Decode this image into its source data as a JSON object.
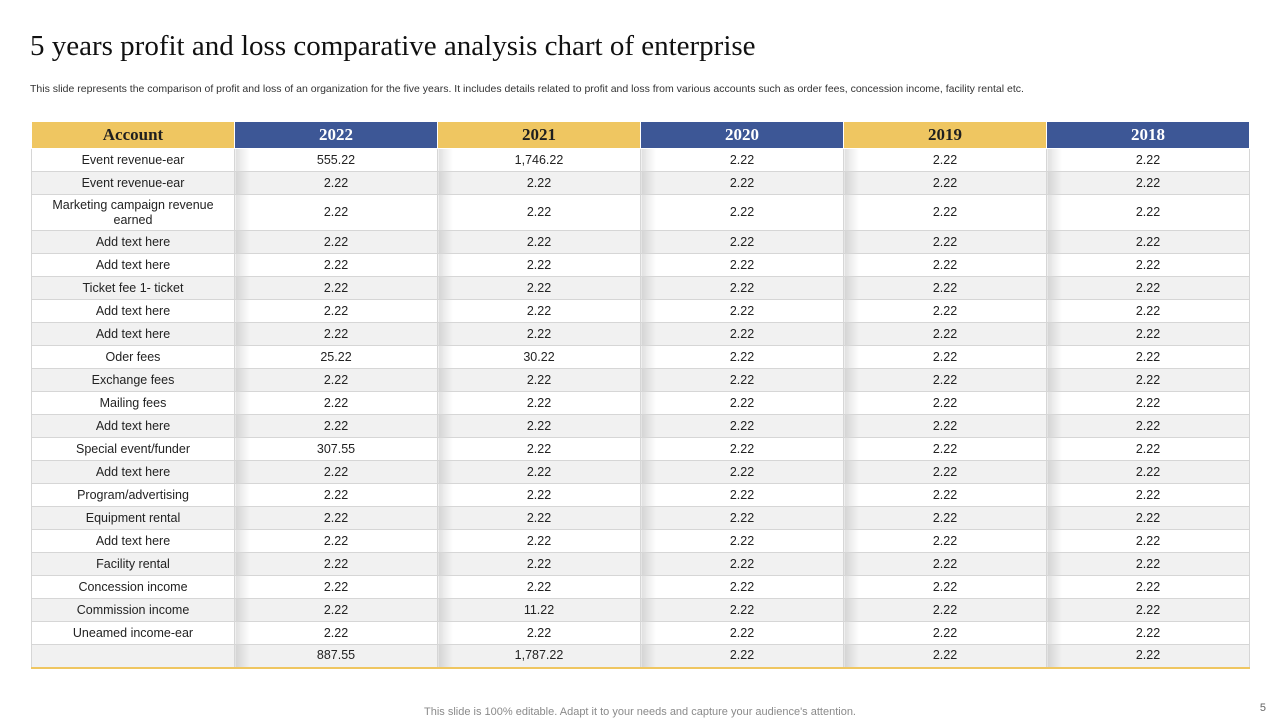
{
  "slide": {
    "title": "5 years profit and loss comparative analysis chart of enterprise",
    "subtitle": "This slide represents the comparison of profit and loss of an organization for the five years. It includes details related to profit and loss from various accounts such as order fees, concession income, facility rental etc.",
    "footer": "This slide is 100% editable. Adapt it to your needs and capture your audience's attention.",
    "page_number": "5"
  },
  "colors": {
    "gold": "#efc661",
    "navy": "#3d5796",
    "row_alt": "#f1f1f1"
  },
  "table": {
    "headers": [
      "Account",
      "2022",
      "2021",
      "2020",
      "2019",
      "2018"
    ],
    "rows": [
      [
        "Event revenue-ear",
        "555.22",
        "1,746.22",
        "2.22",
        "2.22",
        "2.22"
      ],
      [
        "Event revenue-ear",
        "2.22",
        "2.22",
        "2.22",
        "2.22",
        "2.22"
      ],
      [
        "Marketing campaign revenue earned",
        "2.22",
        "2.22",
        "2.22",
        "2.22",
        "2.22"
      ],
      [
        "Add text here",
        "2.22",
        "2.22",
        "2.22",
        "2.22",
        "2.22"
      ],
      [
        "Add text here",
        "2.22",
        "2.22",
        "2.22",
        "2.22",
        "2.22"
      ],
      [
        "Ticket fee 1- ticket",
        "2.22",
        "2.22",
        "2.22",
        "2.22",
        "2.22"
      ],
      [
        "Add text here",
        "2.22",
        "2.22",
        "2.22",
        "2.22",
        "2.22"
      ],
      [
        "Add text here",
        "2.22",
        "2.22",
        "2.22",
        "2.22",
        "2.22"
      ],
      [
        "Oder fees",
        "25.22",
        "30.22",
        "2.22",
        "2.22",
        "2.22"
      ],
      [
        "Exchange fees",
        "2.22",
        "2.22",
        "2.22",
        "2.22",
        "2.22"
      ],
      [
        "Mailing fees",
        "2.22",
        "2.22",
        "2.22",
        "2.22",
        "2.22"
      ],
      [
        "Add text here",
        "2.22",
        "2.22",
        "2.22",
        "2.22",
        "2.22"
      ],
      [
        "Special event/funder",
        "307.55",
        "2.22",
        "2.22",
        "2.22",
        "2.22"
      ],
      [
        "Add text here",
        "2.22",
        "2.22",
        "2.22",
        "2.22",
        "2.22"
      ],
      [
        "Program/advertising",
        "2.22",
        "2.22",
        "2.22",
        "2.22",
        "2.22"
      ],
      [
        "Equipment rental",
        "2.22",
        "2.22",
        "2.22",
        "2.22",
        "2.22"
      ],
      [
        "Add text here",
        "2.22",
        "2.22",
        "2.22",
        "2.22",
        "2.22"
      ],
      [
        "Facility rental",
        "2.22",
        "2.22",
        "2.22",
        "2.22",
        "2.22"
      ],
      [
        "Concession income",
        "2.22",
        "2.22",
        "2.22",
        "2.22",
        "2.22"
      ],
      [
        "Commission income",
        "2.22",
        "11.22",
        "2.22",
        "2.22",
        "2.22"
      ],
      [
        "Uneamed income-ear",
        "2.22",
        "2.22",
        "2.22",
        "2.22",
        "2.22"
      ],
      [
        "",
        "887.55",
        "1,787.22",
        "2.22",
        "2.22",
        "2.22"
      ]
    ]
  }
}
